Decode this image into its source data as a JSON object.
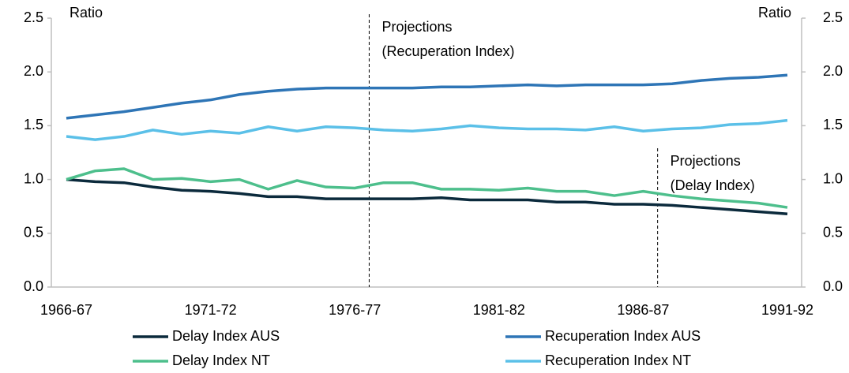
{
  "chart_data": {
    "type": "line",
    "categories": [
      "1966-67",
      null,
      null,
      null,
      null,
      "1971-72",
      null,
      null,
      null,
      null,
      "1976-77",
      null,
      null,
      null,
      null,
      "1981-82",
      null,
      null,
      null,
      null,
      "1986-87",
      null,
      null,
      null,
      null,
      "1991-92"
    ],
    "series": [
      {
        "name": "Delay Index AUS",
        "color": "#0b2a3c",
        "values": [
          1.0,
          0.98,
          0.97,
          0.93,
          0.9,
          0.89,
          0.87,
          0.84,
          0.84,
          0.82,
          0.82,
          0.82,
          0.82,
          0.83,
          0.81,
          0.81,
          0.81,
          0.79,
          0.79,
          0.77,
          0.77,
          0.76,
          0.74,
          0.72,
          0.7,
          0.68
        ]
      },
      {
        "name": "Recuperation Index AUS",
        "color": "#2e75b6",
        "values": [
          1.57,
          1.6,
          1.63,
          1.67,
          1.71,
          1.74,
          1.79,
          1.82,
          1.84,
          1.85,
          1.85,
          1.85,
          1.85,
          1.86,
          1.86,
          1.87,
          1.88,
          1.87,
          1.88,
          1.88,
          1.88,
          1.89,
          1.92,
          1.94,
          1.95,
          1.97
        ]
      },
      {
        "name": "Delay Index NT",
        "color": "#4dbf8c",
        "values": [
          1.0,
          1.08,
          1.1,
          1.0,
          1.01,
          0.98,
          1.0,
          0.91,
          0.99,
          0.93,
          0.92,
          0.97,
          0.97,
          0.91,
          0.91,
          0.9,
          0.92,
          0.89,
          0.89,
          0.85,
          0.89,
          0.85,
          0.82,
          0.8,
          0.78,
          0.74
        ]
      },
      {
        "name": "Recuperation Index NT",
        "color": "#5bc0e8",
        "values": [
          1.4,
          1.37,
          1.4,
          1.46,
          1.42,
          1.45,
          1.43,
          1.49,
          1.45,
          1.49,
          1.48,
          1.46,
          1.45,
          1.47,
          1.5,
          1.48,
          1.47,
          1.47,
          1.46,
          1.49,
          1.45,
          1.47,
          1.48,
          1.51,
          1.52,
          1.55
        ]
      }
    ],
    "y_label": "Ratio",
    "y2_label": "Ratio",
    "ylim": [
      0,
      2.5
    ],
    "yticks": [
      {
        "value": 0,
        "label": "0.0"
      },
      0.5,
      {
        "value": 1,
        "label": "1.0"
      },
      1.5,
      {
        "value": 2,
        "label": "2.0"
      },
      2.5
    ],
    "y2lim": [
      0,
      2.5
    ],
    "y2ticks": [
      {
        "value": 0,
        "label": "0.0"
      },
      0.5,
      {
        "value": 1,
        "label": "1.0"
      },
      1.5,
      {
        "value": 2,
        "label": "2.0"
      },
      2.5
    ],
    "annotations": [
      {
        "x": 10.5,
        "lines": [
          "Projections",
          "(Recuperation Index)"
        ]
      },
      {
        "x": 20.5,
        "lines": [
          "Projections",
          "(Delay Index)"
        ]
      }
    ],
    "grid": false,
    "legend": "bottom"
  }
}
